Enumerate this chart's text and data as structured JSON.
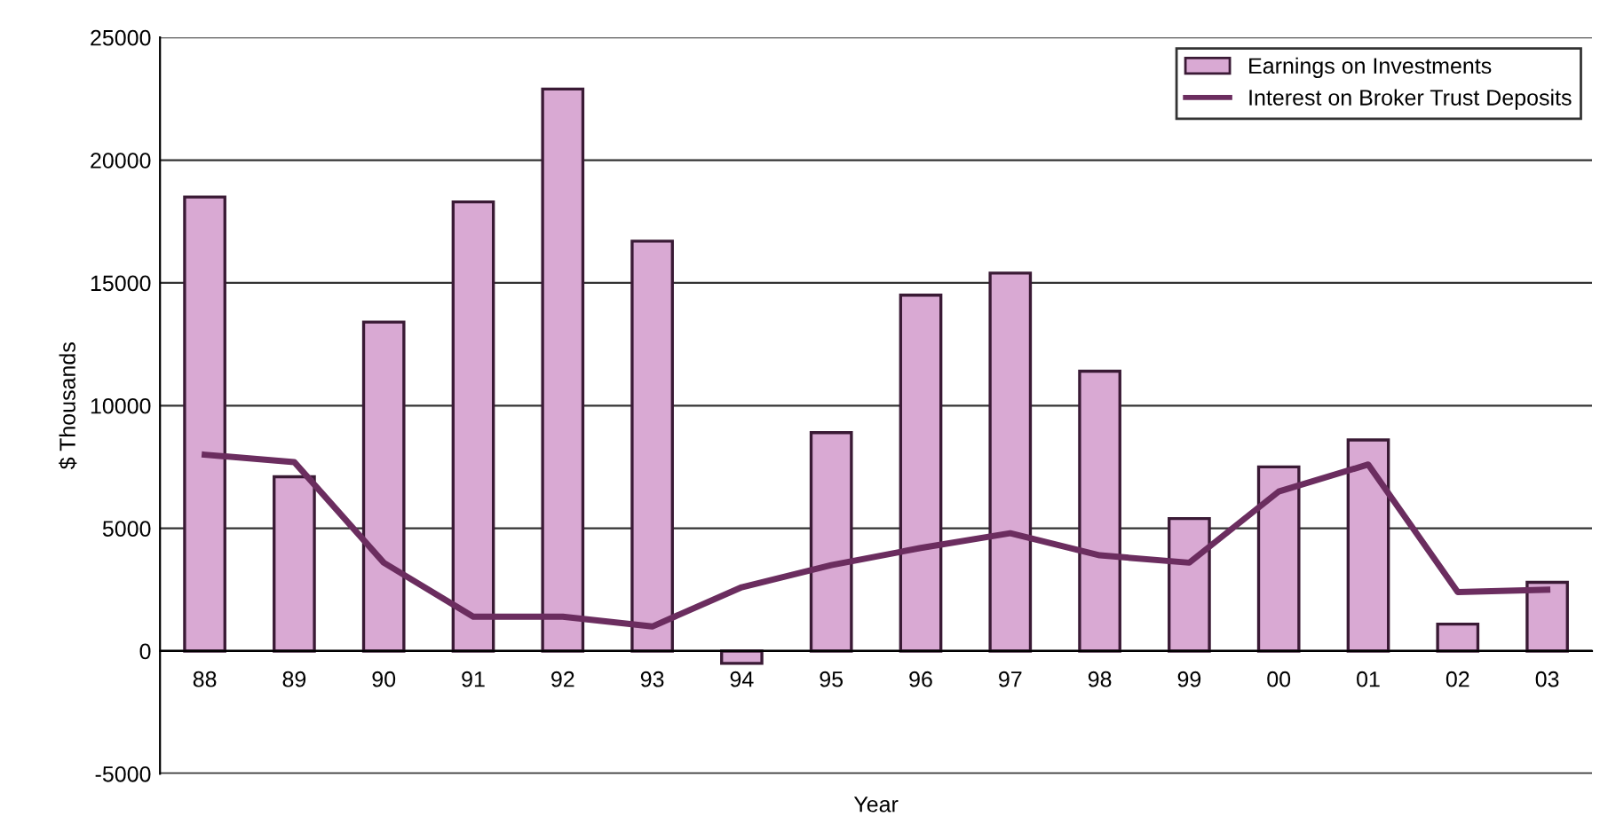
{
  "chart_data": {
    "type": "bar",
    "xlabel": "Year",
    "ylabel": "$ Thousands",
    "categories": [
      "88",
      "89",
      "90",
      "91",
      "92",
      "93",
      "94",
      "95",
      "96",
      "97",
      "98",
      "99",
      "00",
      "01",
      "02",
      "03"
    ],
    "series": [
      {
        "name": "Earnings on Investments",
        "color": "#d9a9d3",
        "values": [
          18500,
          7100,
          13400,
          18300,
          22900,
          16700,
          -500,
          8900,
          14500,
          15400,
          11400,
          5400,
          7500,
          8600,
          1100,
          2800
        ]
      },
      {
        "name": "Interest on Broker Trust Deposits",
        "type": "line",
        "color": "#6b2d5f",
        "values": [
          8000,
          7700,
          3600,
          1400,
          1400,
          1000,
          2600,
          3500,
          4200,
          4800,
          3900,
          3600,
          6500,
          7600,
          2400,
          2500
        ]
      }
    ],
    "ylim": [
      -5000,
      25000
    ],
    "yticks": [
      -5000,
      0,
      5000,
      10000,
      15000,
      20000,
      25000
    ],
    "grid": "y",
    "legend": "top right"
  }
}
